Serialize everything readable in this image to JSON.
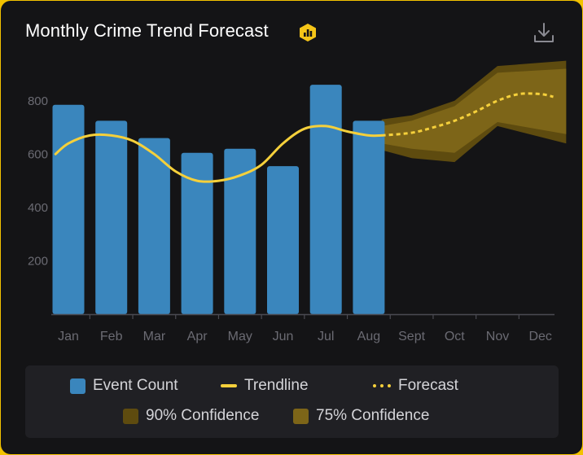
{
  "header": {
    "title": "Monthly Crime Trend Forecast"
  },
  "colors": {
    "bar": "#3a86bd",
    "trend": "#f5d03b",
    "ci90": "#5e4b0f",
    "ci75": "#7d6518",
    "axis_text": "#6b6b73",
    "axis_line": "#4a4a52"
  },
  "legend": {
    "items": [
      {
        "label": "Event Count",
        "kind": "bar"
      },
      {
        "label": "Trendline",
        "kind": "line"
      },
      {
        "label": "Forecast",
        "kind": "dash"
      },
      {
        "label": "90% Confidence",
        "kind": "ci90"
      },
      {
        "label": "75% Confidence",
        "kind": "ci75"
      }
    ]
  },
  "chart_data": {
    "type": "bar",
    "title": "Monthly Crime Trend Forecast",
    "categories": [
      "Jan",
      "Feb",
      "Mar",
      "Apr",
      "May",
      "Jun",
      "Jul",
      "Aug",
      "Sept",
      "Oct",
      "Nov",
      "Dec"
    ],
    "ylim": [
      0,
      900
    ],
    "yticks": [
      200,
      400,
      600,
      800
    ],
    "series": [
      {
        "name": "Event Count",
        "type": "bar",
        "values": [
          785,
          725,
          660,
          605,
          620,
          555,
          860,
          725,
          null,
          null,
          null,
          null
        ]
      },
      {
        "name": "Trendline",
        "type": "line",
        "x": [
          -0.3,
          0.0,
          0.5,
          1.0,
          1.5,
          2.0,
          2.5,
          3.0,
          3.5,
          4.0,
          4.5,
          5.0,
          5.5,
          6.0,
          6.5,
          7.0,
          7.3
        ],
        "values": [
          600,
          640,
          670,
          670,
          650,
          600,
          535,
          500,
          500,
          520,
          560,
          640,
          695,
          705,
          685,
          670,
          670
        ]
      },
      {
        "name": "Forecast",
        "type": "line",
        "x": [
          7.3,
          8.0,
          8.5,
          9.0,
          9.5,
          10.0,
          10.5,
          11.0,
          11.3
        ],
        "values": [
          670,
          680,
          700,
          725,
          760,
          800,
          825,
          825,
          815
        ]
      },
      {
        "name": "90% Confidence",
        "type": "area",
        "x": [
          7.3,
          8.0,
          9.0,
          10.0,
          11.6
        ],
        "lower": [
          615,
          585,
          570,
          705,
          640
        ],
        "upper": [
          730,
          745,
          800,
          930,
          950
        ]
      },
      {
        "name": "75% Confidence",
        "type": "area",
        "x": [
          7.3,
          8.0,
          9.0,
          10.0,
          11.6
        ],
        "lower": [
          640,
          620,
          605,
          720,
          675
        ],
        "upper": [
          705,
          725,
          780,
          905,
          920
        ]
      }
    ],
    "legend": [
      "Event Count",
      "Trendline",
      "Forecast",
      "90% Confidence",
      "75% Confidence"
    ],
    "grid": false
  }
}
